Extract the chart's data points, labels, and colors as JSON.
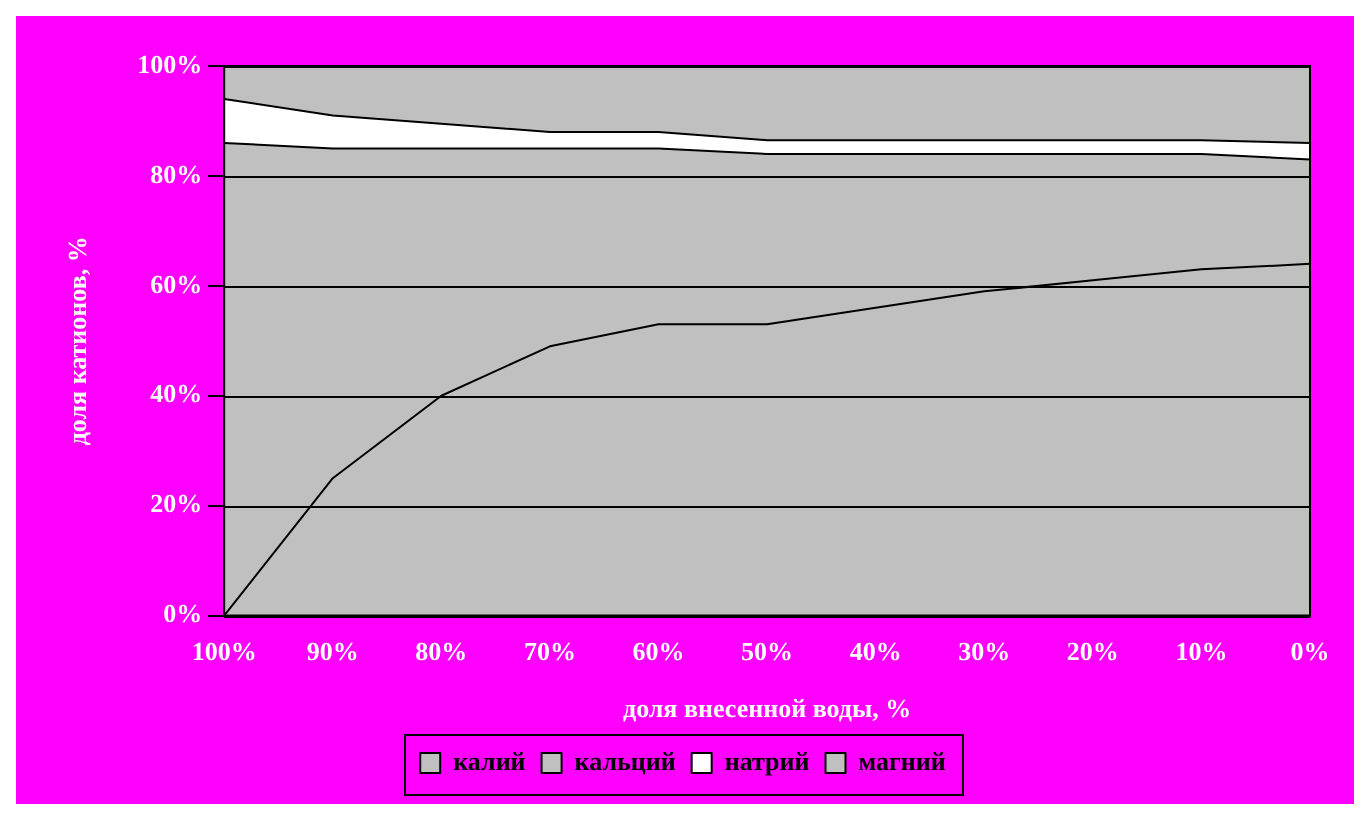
{
  "chart_data": {
    "type": "area",
    "stacked": true,
    "xlabel": "доля внесенной воды, %",
    "ylabel": "доля катионов, %",
    "categories": [
      "100%",
      "90%",
      "80%",
      "70%",
      "60%",
      "50%",
      "40%",
      "30%",
      "20%",
      "10%",
      "0%"
    ],
    "series": [
      {
        "name": "калий",
        "color": "#c0c0c0",
        "values": [
          0,
          25,
          40,
          49,
          53,
          53,
          56,
          59,
          61,
          63,
          64
        ]
      },
      {
        "name": "кальций",
        "color": "#c0c0c0",
        "values": [
          86,
          60,
          45,
          36,
          32,
          31,
          28,
          25,
          23,
          21,
          19
        ]
      },
      {
        "name": "натрий",
        "color": "#ffffff",
        "values": [
          8,
          6,
          4.5,
          3,
          3,
          2.5,
          2.5,
          2.5,
          2.5,
          2.5,
          3
        ]
      },
      {
        "name": "магний",
        "color": "#c0c0c0",
        "values": [
          6,
          9,
          10.5,
          12,
          12,
          13.5,
          13.5,
          13.5,
          13.5,
          13.5,
          14
        ]
      }
    ],
    "ylim": [
      0,
      100
    ],
    "yticks": [
      {
        "value": 0,
        "label": "0%"
      },
      {
        "value": 20,
        "label": "20%"
      },
      {
        "value": 40,
        "label": "40%"
      },
      {
        "value": 60,
        "label": "60%"
      },
      {
        "value": 80,
        "label": "80%"
      },
      {
        "value": 100,
        "label": "100%"
      }
    ],
    "grid": "y",
    "legend": "bottom",
    "marker": "none",
    "line_style": "solid"
  }
}
